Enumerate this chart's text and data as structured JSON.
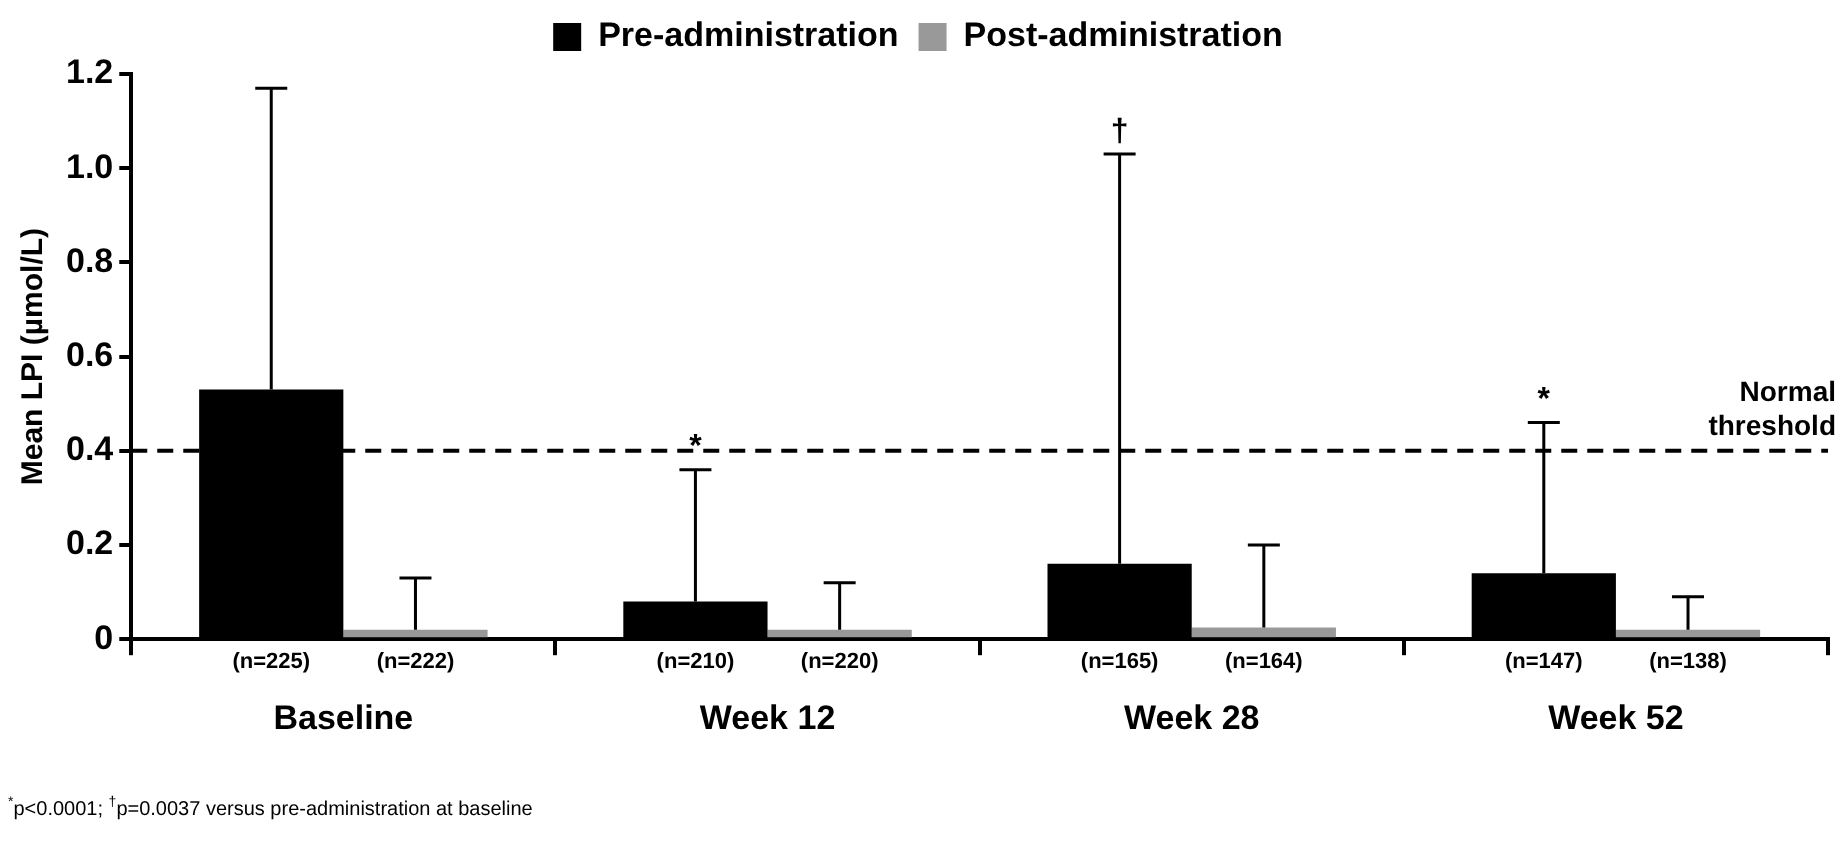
{
  "chart_data": {
    "type": "bar",
    "ylabel": "Mean LPI (µmol/L)",
    "categories": [
      "Baseline",
      "Week 12",
      "Week 28",
      "Week 52"
    ],
    "series": [
      {
        "name": "Pre-administration",
        "color": "#000000",
        "values": [
          0.53,
          0.08,
          0.16,
          0.14
        ],
        "errors": [
          [
            0.53,
            1.17
          ],
          [
            0.08,
            0.36
          ],
          [
            0.16,
            1.03
          ],
          [
            0.14,
            0.46
          ]
        ]
      },
      {
        "name": "Post-administration",
        "color": "#999999",
        "values": [
          0.02,
          0.02,
          0.025,
          0.02
        ],
        "errors": [
          [
            0.02,
            0.13
          ],
          [
            0.02,
            0.12
          ],
          [
            0.025,
            0.2
          ],
          [
            0.02,
            0.09
          ]
        ]
      }
    ],
    "ylim": [
      0,
      1.2
    ],
    "yticks": [
      0,
      0.2,
      0.4,
      0.6,
      0.8,
      {
        "value": 1,
        "label": "1.0"
      },
      1.2
    ],
    "ref_lines": [
      {
        "axis": "y",
        "value": 0.4,
        "label": "Normal threshold",
        "line_style": "dashed",
        "color": "#000000"
      }
    ],
    "annotations": [
      {
        "text": "(n=225)",
        "x": "Baseline",
        "y": 0
      },
      {
        "text": "(n=222)",
        "x": "Baseline",
        "y": 0
      },
      {
        "text": "(n=210)",
        "x": "Week 12",
        "y": 0
      },
      {
        "text": "(n=220)",
        "x": "Week 12",
        "y": 0
      },
      {
        "text": "(n=165)",
        "x": "Week 28",
        "y": 0
      },
      {
        "text": "(n=164)",
        "x": "Week 28",
        "y": 0
      },
      {
        "text": "(n=147)",
        "x": "Week 52",
        "y": 0
      },
      {
        "text": "(n=138)",
        "x": "Week 52",
        "y": 0
      },
      "*",
      "†",
      "*",
      "$^{*}$p<0.0001; $^{†}$p=0.0037 versus pre-administration at baseline"
    ],
    "grid": false,
    "legend": "top"
  }
}
